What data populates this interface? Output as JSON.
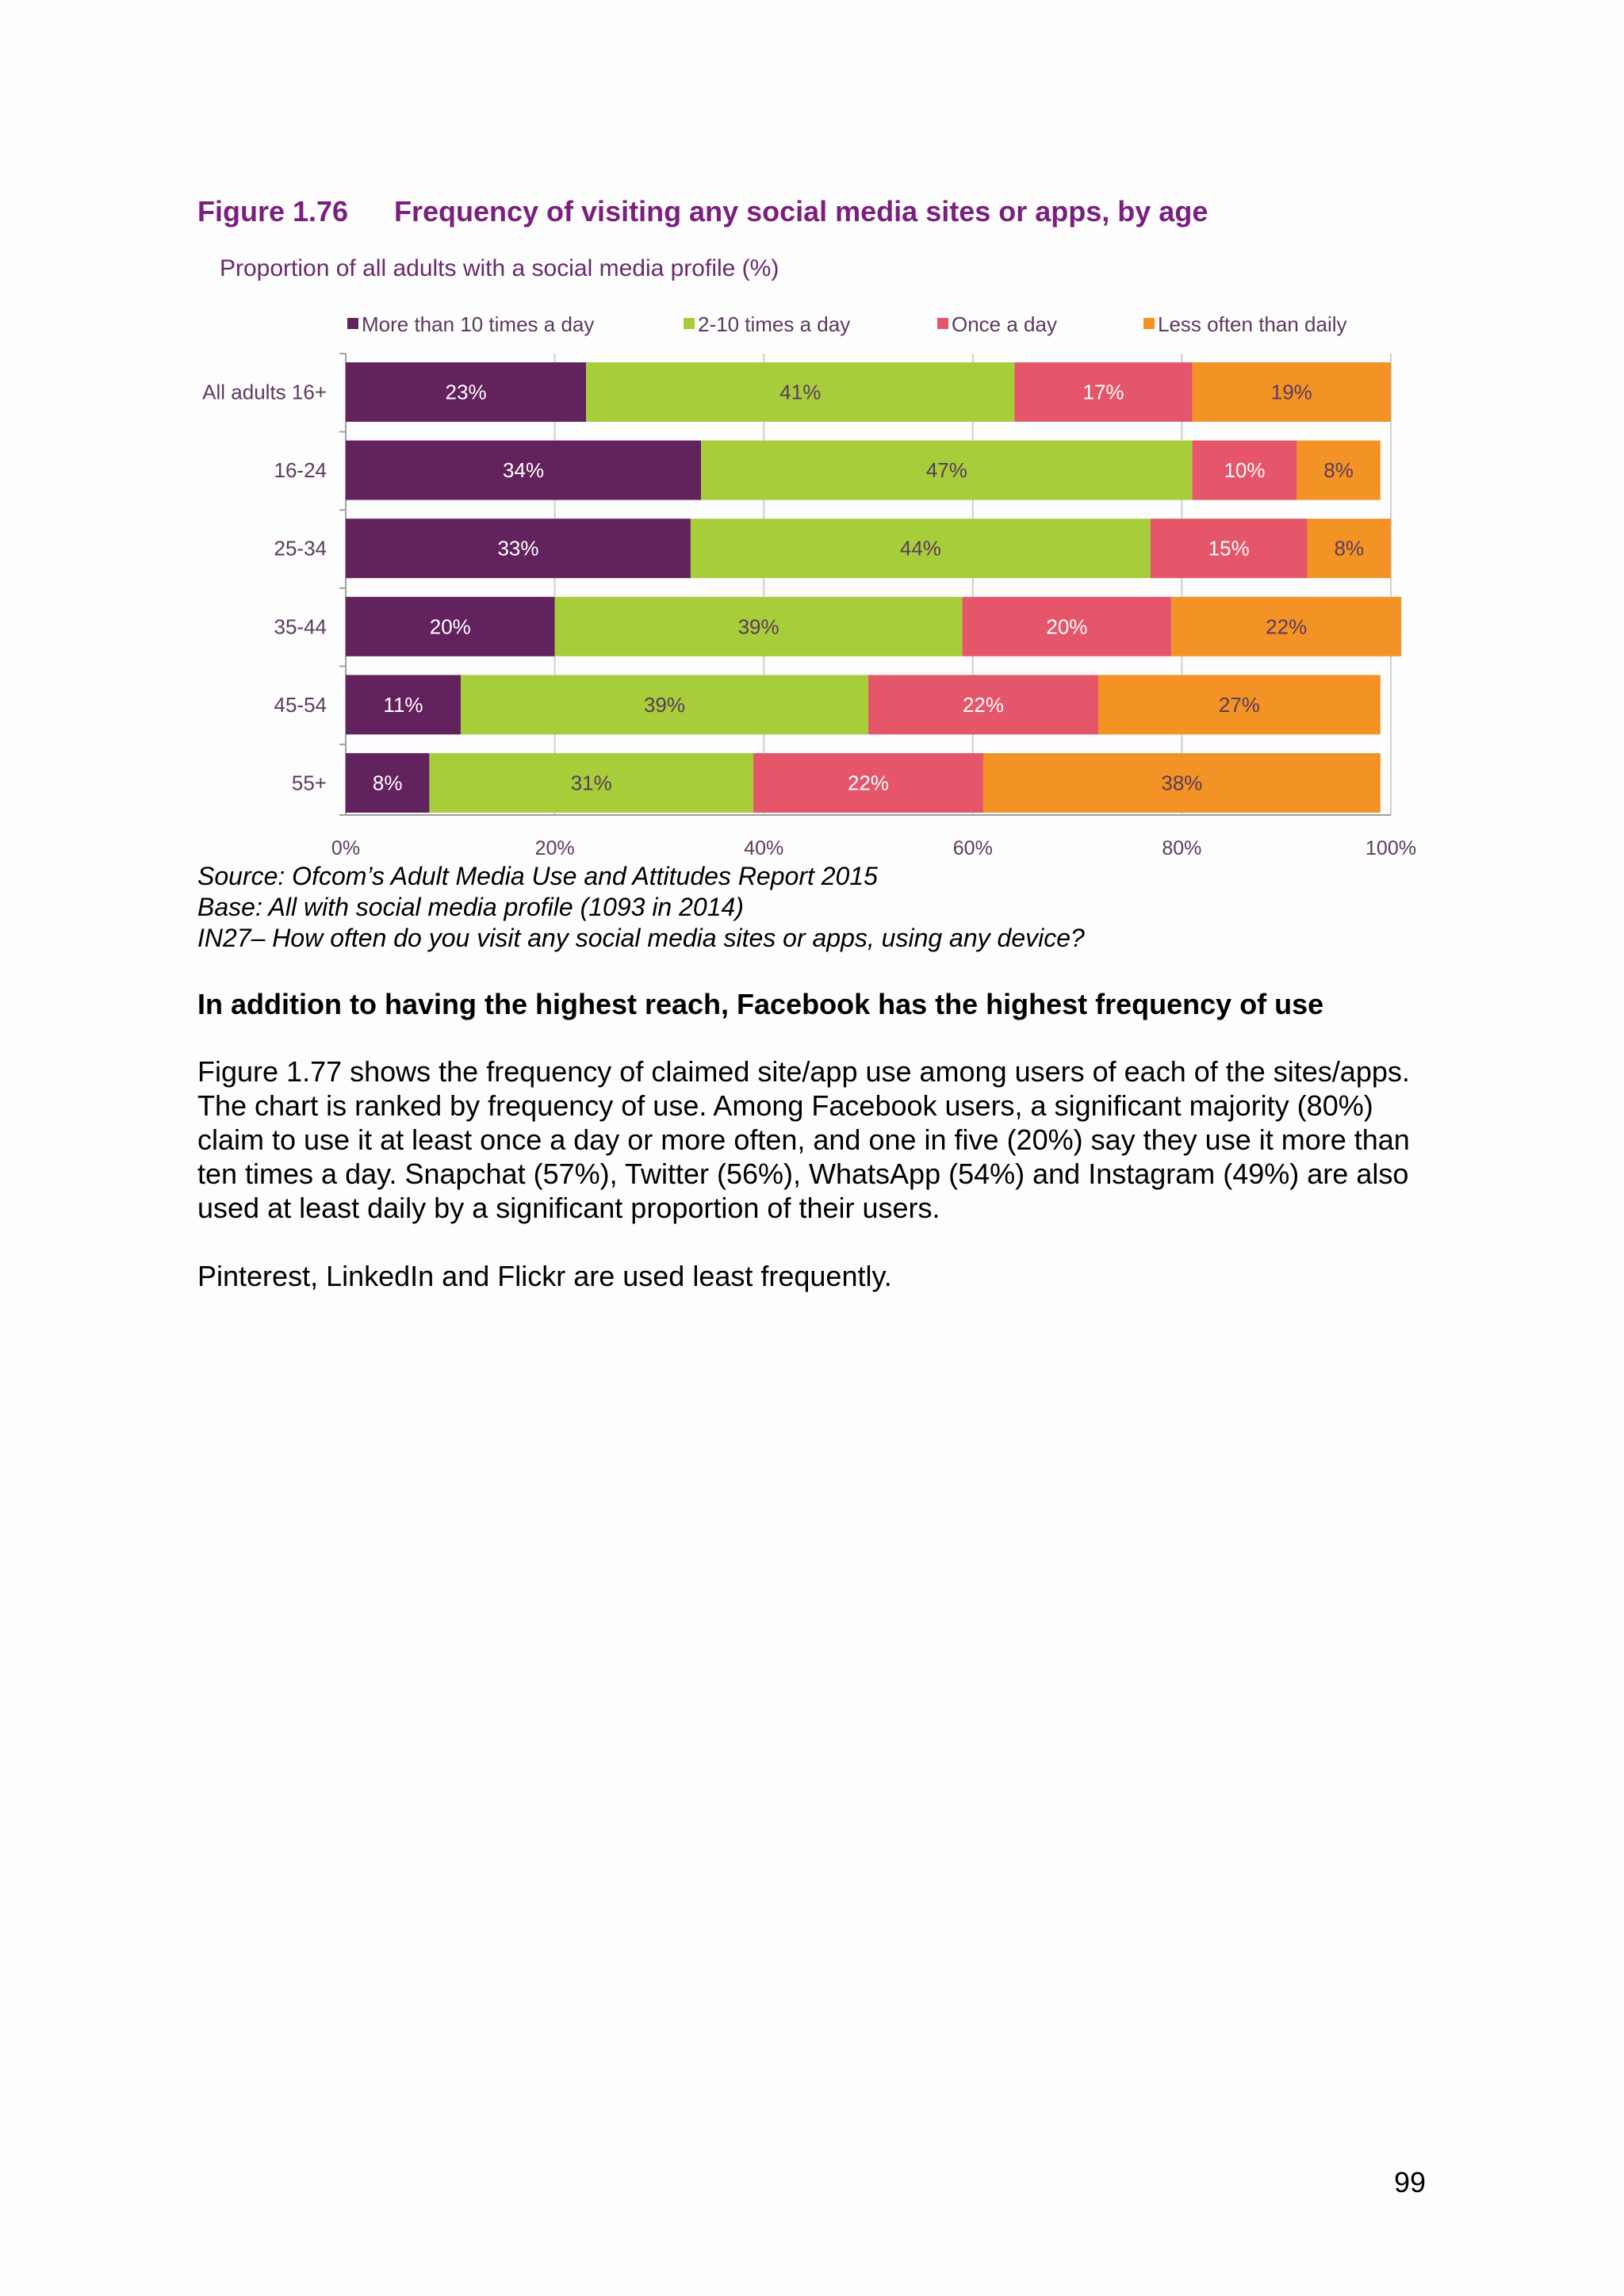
{
  "figure": {
    "number": "Figure 1.76",
    "title": "Frequency of visiting any social media sites or apps, by age",
    "subtitle": "Proportion of all adults with a social media profile (%)"
  },
  "chart_data": {
    "type": "bar",
    "orientation": "horizontal",
    "stacked": true,
    "categories": [
      "All adults 16+",
      "16-24",
      "25-34",
      "35-44",
      "45-54",
      "55+"
    ],
    "series": [
      {
        "name": "More than 10 times a day",
        "values": [
          23,
          34,
          33,
          20,
          11,
          8
        ],
        "color": "#62225e"
      },
      {
        "name": "2-10 times a day",
        "values": [
          41,
          47,
          44,
          39,
          39,
          31
        ],
        "color": "#a8cd3a"
      },
      {
        "name": "Once a day",
        "values": [
          17,
          10,
          15,
          20,
          22,
          22
        ],
        "color": "#e6566a"
      },
      {
        "name": "Less often than daily",
        "values": [
          19,
          8,
          8,
          22,
          27,
          38
        ],
        "color": "#f39325"
      }
    ],
    "label_colors": [
      "#ffffff",
      "#5c3a5e",
      "#ffffff",
      "#5c3a5e"
    ],
    "xlim": [
      0,
      100
    ],
    "x_ticks": [
      "0%",
      "20%",
      "40%",
      "60%",
      "80%",
      "100%"
    ],
    "grid": true,
    "legend": "top"
  },
  "notes": {
    "source": "Source: Ofcom’s Adult Media Use and Attitudes Report 2015",
    "base": "Base: All with social media profile (1093 in 2014)",
    "question": "IN27– How often do you visit any social media sites or apps, using any device?"
  },
  "section_heading": "In addition to having the highest reach, Facebook has the highest frequency of use",
  "paragraphs": [
    "Figure 1.77 shows the frequency of claimed site/app use among users of each of the sites/apps. The chart is ranked by frequency of use. Among Facebook users, a significant majority (80%) claim to use it at least once a day or more often, and one in five (20%) say they use it more than ten times a day. Snapchat (57%), Twitter (56%), WhatsApp (54%) and Instagram (49%) are also used at least daily by a significant proportion of their users.",
    "Pinterest, LinkedIn and Flickr are used least frequently."
  ],
  "page_number": "99"
}
